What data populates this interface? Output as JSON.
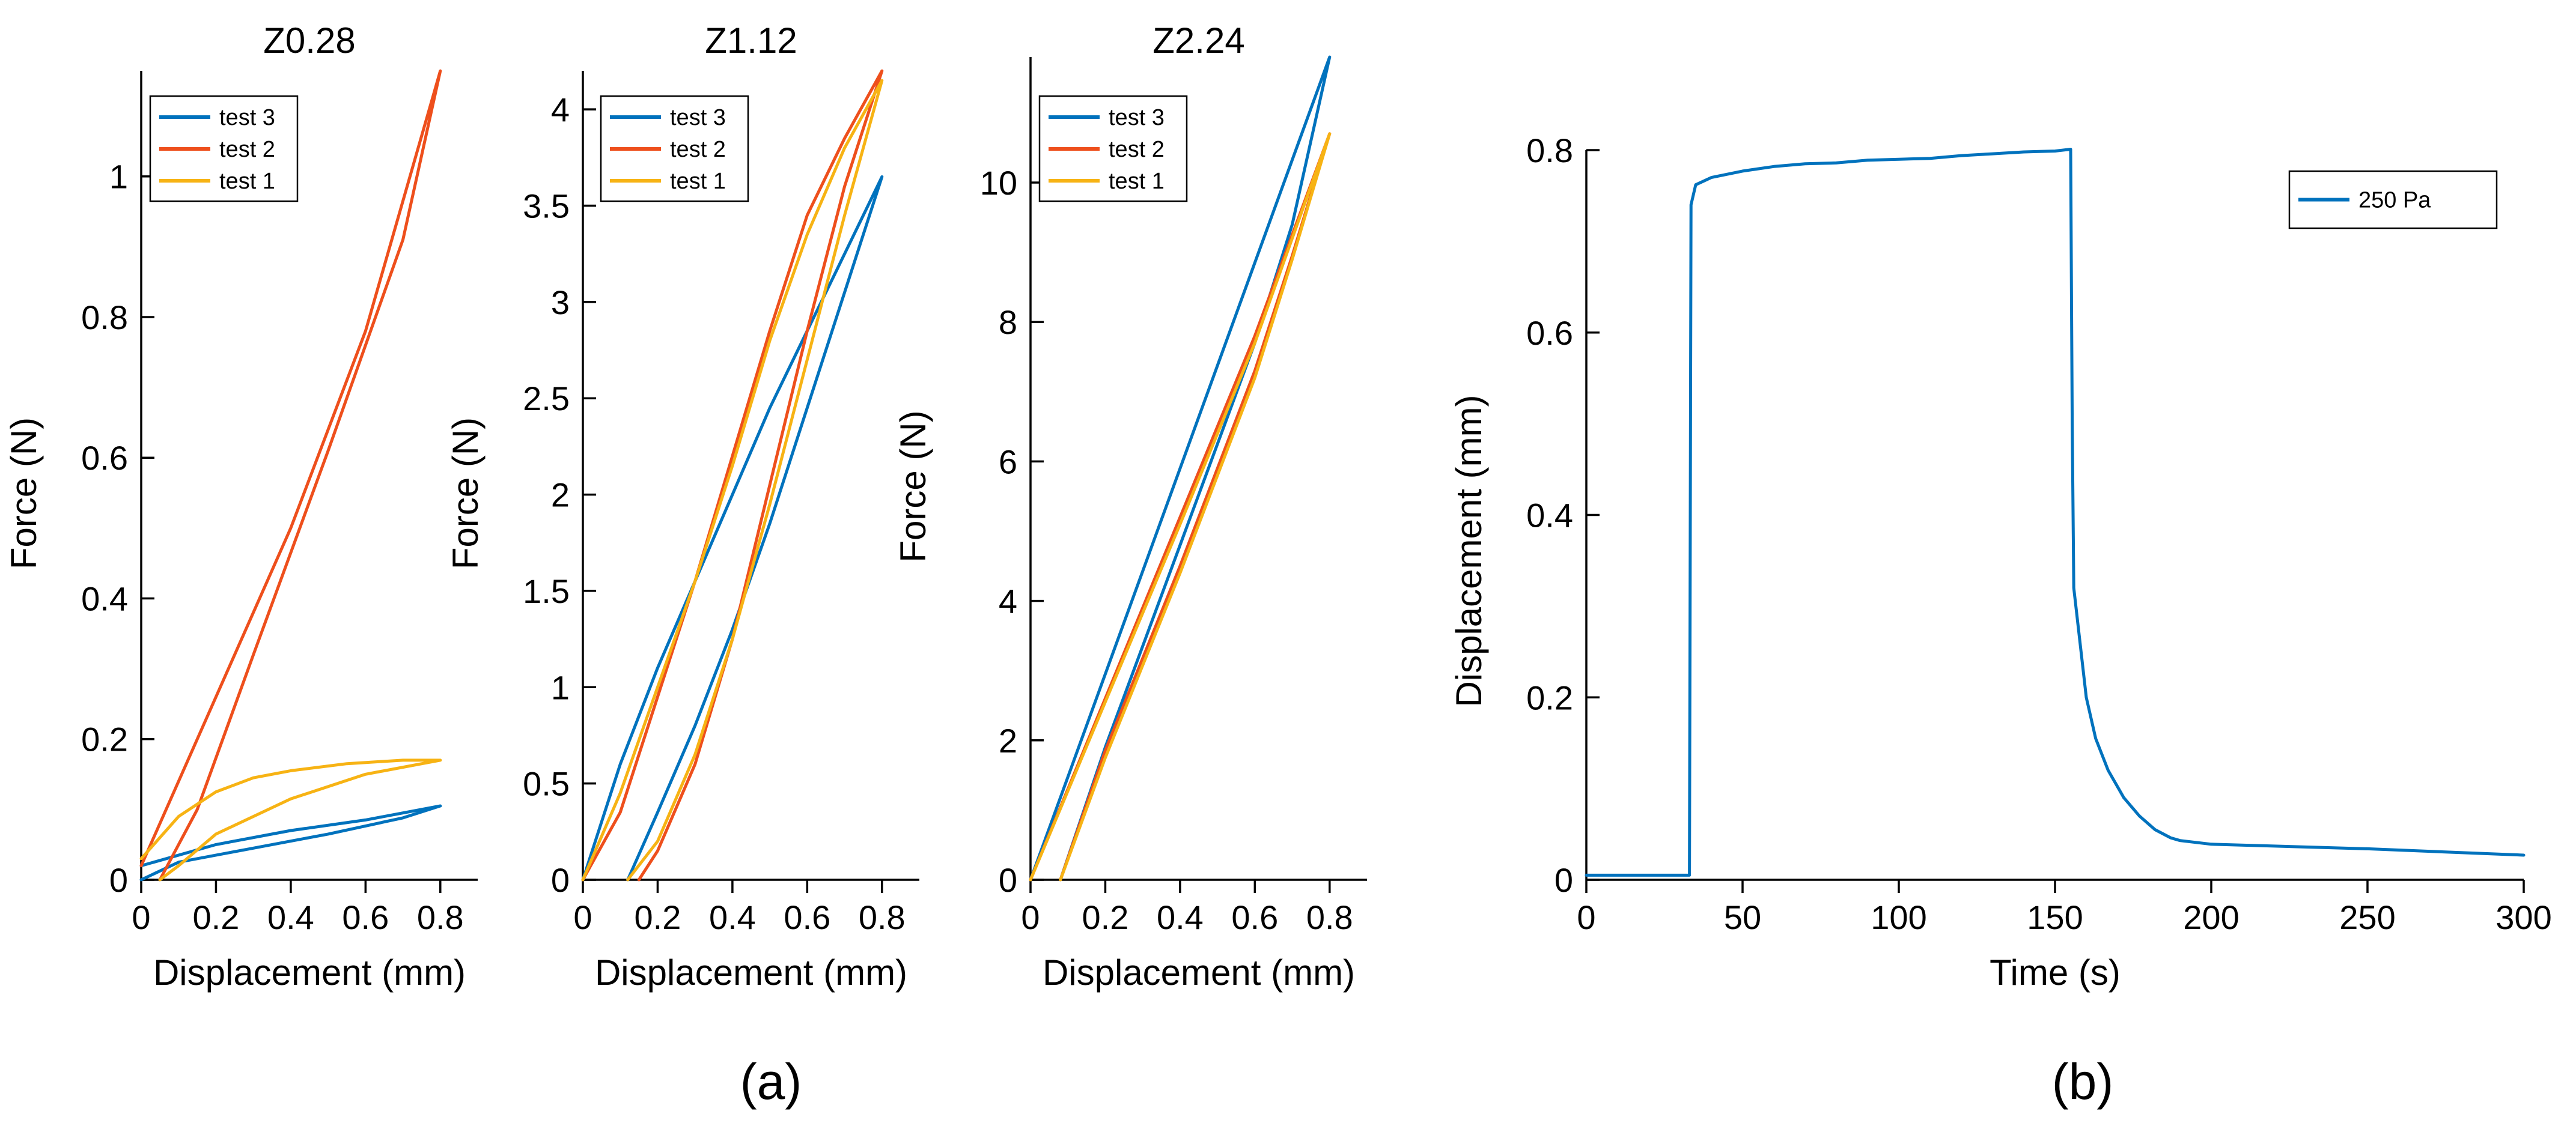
{
  "figure": {
    "captions": {
      "a": "(a)",
      "b": "(b)"
    }
  },
  "chart_data": [
    {
      "id": "z028",
      "type": "line",
      "title": "Z0.28",
      "xlabel": "Displacement (mm)",
      "ylabel": "Force (N)",
      "xlim": [
        0,
        0.9
      ],
      "ylim": [
        0,
        1.15
      ],
      "xticks": [
        0,
        0.2,
        0.4,
        0.6,
        0.8
      ],
      "xtick_labels": [
        "0",
        "0.2",
        "0.4",
        "0.6",
        "0.8"
      ],
      "yticks": [
        0,
        0.2,
        0.4,
        0.6,
        0.8,
        1
      ],
      "ytick_labels": [
        "0",
        "0.2",
        "0.4",
        "0.6",
        "0.8",
        "1"
      ],
      "legend_position": "top-left",
      "series": [
        {
          "name": "test 3",
          "color": "#0072BD",
          "points": [
            [
              0.0,
              0.02
            ],
            [
              0.2,
              0.05
            ],
            [
              0.4,
              0.07
            ],
            [
              0.6,
              0.085
            ],
            [
              0.8,
              0.105
            ],
            [
              0.7,
              0.088
            ],
            [
              0.5,
              0.065
            ],
            [
              0.3,
              0.045
            ],
            [
              0.1,
              0.025
            ],
            [
              0.0,
              0.0
            ]
          ]
        },
        {
          "name": "test 2",
          "color": "#EE4F1C",
          "points": [
            [
              0.0,
              0.02
            ],
            [
              0.2,
              0.26
            ],
            [
              0.4,
              0.5
            ],
            [
              0.6,
              0.78
            ],
            [
              0.8,
              1.15
            ],
            [
              0.7,
              0.91
            ],
            [
              0.5,
              0.61
            ],
            [
              0.3,
              0.32
            ],
            [
              0.15,
              0.1
            ],
            [
              0.05,
              0.0
            ]
          ]
        },
        {
          "name": "test 1",
          "color": "#F7B314",
          "points": [
            [
              0.0,
              0.03
            ],
            [
              0.1,
              0.09
            ],
            [
              0.2,
              0.125
            ],
            [
              0.3,
              0.145
            ],
            [
              0.4,
              0.155
            ],
            [
              0.55,
              0.165
            ],
            [
              0.7,
              0.17
            ],
            [
              0.8,
              0.17
            ],
            [
              0.6,
              0.15
            ],
            [
              0.4,
              0.115
            ],
            [
              0.2,
              0.065
            ],
            [
              0.1,
              0.02
            ],
            [
              0.05,
              0.0
            ]
          ]
        }
      ]
    },
    {
      "id": "z112",
      "type": "line",
      "title": "Z1.12",
      "xlabel": "Displacement (mm)",
      "ylabel": "Force (N)",
      "xlim": [
        0,
        0.9
      ],
      "ylim": [
        0,
        4.2
      ],
      "xticks": [
        0,
        0.2,
        0.4,
        0.6,
        0.8
      ],
      "xtick_labels": [
        "0",
        "0.2",
        "0.4",
        "0.6",
        "0.8"
      ],
      "yticks": [
        0,
        0.5,
        1,
        1.5,
        2,
        2.5,
        3,
        3.5,
        4
      ],
      "ytick_labels": [
        "0",
        "0.5",
        "1",
        "1.5",
        "2",
        "2.5",
        "3",
        "3.5",
        "4"
      ],
      "legend_position": "top-left",
      "series": [
        {
          "name": "test 3",
          "color": "#0072BD",
          "points": [
            [
              0.0,
              0.0
            ],
            [
              0.1,
              0.6
            ],
            [
              0.2,
              1.1
            ],
            [
              0.3,
              1.55
            ],
            [
              0.4,
              2.0
            ],
            [
              0.5,
              2.45
            ],
            [
              0.6,
              2.85
            ],
            [
              0.7,
              3.25
            ],
            [
              0.8,
              3.65
            ],
            [
              0.7,
              3.05
            ],
            [
              0.6,
              2.45
            ],
            [
              0.5,
              1.85
            ],
            [
              0.4,
              1.3
            ],
            [
              0.3,
              0.8
            ],
            [
              0.2,
              0.35
            ],
            [
              0.12,
              0.0
            ]
          ]
        },
        {
          "name": "test 2",
          "color": "#EE4F1C",
          "points": [
            [
              0.0,
              0.0
            ],
            [
              0.1,
              0.35
            ],
            [
              0.2,
              0.95
            ],
            [
              0.3,
              1.55
            ],
            [
              0.4,
              2.2
            ],
            [
              0.5,
              2.85
            ],
            [
              0.6,
              3.45
            ],
            [
              0.7,
              3.85
            ],
            [
              0.8,
              4.2
            ],
            [
              0.7,
              3.6
            ],
            [
              0.6,
              2.85
            ],
            [
              0.5,
              2.05
            ],
            [
              0.4,
              1.25
            ],
            [
              0.3,
              0.6
            ],
            [
              0.2,
              0.15
            ],
            [
              0.15,
              0.0
            ]
          ]
        },
        {
          "name": "test 1",
          "color": "#F7B314",
          "points": [
            [
              0.0,
              0.0
            ],
            [
              0.1,
              0.45
            ],
            [
              0.2,
              1.0
            ],
            [
              0.3,
              1.55
            ],
            [
              0.4,
              2.15
            ],
            [
              0.5,
              2.8
            ],
            [
              0.6,
              3.35
            ],
            [
              0.7,
              3.8
            ],
            [
              0.8,
              4.15
            ],
            [
              0.7,
              3.45
            ],
            [
              0.6,
              2.7
            ],
            [
              0.5,
              1.95
            ],
            [
              0.4,
              1.25
            ],
            [
              0.3,
              0.65
            ],
            [
              0.2,
              0.2
            ],
            [
              0.12,
              0.0
            ]
          ]
        }
      ]
    },
    {
      "id": "z224",
      "type": "line",
      "title": "Z2.24",
      "xlabel": "Displacement (mm)",
      "ylabel": "Force (N)",
      "xlim": [
        0,
        0.9
      ],
      "ylim": [
        0,
        11.8
      ],
      "xticks": [
        0,
        0.2,
        0.4,
        0.6,
        0.8
      ],
      "xtick_labels": [
        "0",
        "0.2",
        "0.4",
        "0.6",
        "0.8"
      ],
      "yticks": [
        0,
        2,
        4,
        6,
        8,
        10
      ],
      "ytick_labels": [
        "0",
        "2",
        "4",
        "6",
        "8",
        "10"
      ],
      "legend_position": "top-left",
      "series": [
        {
          "name": "test 3",
          "color": "#0072BD",
          "points": [
            [
              0.0,
              0.0
            ],
            [
              0.2,
              2.95
            ],
            [
              0.4,
              5.9
            ],
            [
              0.6,
              8.85
            ],
            [
              0.8,
              11.8
            ],
            [
              0.7,
              9.4
            ],
            [
              0.6,
              7.7
            ],
            [
              0.4,
              4.8
            ],
            [
              0.2,
              1.9
            ],
            [
              0.08,
              0.0
            ]
          ]
        },
        {
          "name": "test 2",
          "color": "#EE4F1C",
          "points": [
            [
              0.0,
              0.0
            ],
            [
              0.2,
              2.6
            ],
            [
              0.4,
              5.2
            ],
            [
              0.6,
              7.8
            ],
            [
              0.8,
              10.7
            ],
            [
              0.7,
              8.95
            ],
            [
              0.6,
              7.3
            ],
            [
              0.4,
              4.5
            ],
            [
              0.2,
              1.85
            ],
            [
              0.08,
              0.0
            ]
          ]
        },
        {
          "name": "test 1",
          "color": "#F7B314",
          "points": [
            [
              0.0,
              0.0
            ],
            [
              0.2,
              2.55
            ],
            [
              0.4,
              5.1
            ],
            [
              0.6,
              7.7
            ],
            [
              0.8,
              10.7
            ],
            [
              0.7,
              8.9
            ],
            [
              0.6,
              7.2
            ],
            [
              0.4,
              4.4
            ],
            [
              0.2,
              1.75
            ],
            [
              0.08,
              0.0
            ]
          ]
        }
      ]
    },
    {
      "id": "creep",
      "type": "line",
      "title": "",
      "xlabel": "Time (s)",
      "ylabel": "Displacement (mm)",
      "xlim": [
        0,
        300
      ],
      "ylim": [
        0,
        0.8
      ],
      "xticks": [
        0,
        50,
        100,
        150,
        200,
        250,
        300
      ],
      "xtick_labels": [
        "0",
        "50",
        "100",
        "150",
        "200",
        "250",
        "300"
      ],
      "yticks": [
        0,
        0.2,
        0.4,
        0.6,
        0.8
      ],
      "ytick_labels": [
        "0",
        "0.2",
        "0.4",
        "0.6",
        "0.8"
      ],
      "legend_position": "top-right",
      "series": [
        {
          "name": "250 Pa",
          "color": "#0072BD",
          "points": [
            [
              0,
              0.005
            ],
            [
              33,
              0.005
            ],
            [
              33.5,
              0.74
            ],
            [
              35,
              0.762
            ],
            [
              40,
              0.77
            ],
            [
              50,
              0.777
            ],
            [
              60,
              0.782
            ],
            [
              70,
              0.785
            ],
            [
              80,
              0.786
            ],
            [
              90,
              0.789
            ],
            [
              100,
              0.79
            ],
            [
              110,
              0.791
            ],
            [
              120,
              0.794
            ],
            [
              130,
              0.796
            ],
            [
              140,
              0.798
            ],
            [
              150,
              0.799
            ],
            [
              155,
              0.801
            ],
            [
              155.5,
              0.5
            ],
            [
              156,
              0.32
            ],
            [
              158,
              0.26
            ],
            [
              160,
              0.2
            ],
            [
              163,
              0.155
            ],
            [
              167,
              0.12
            ],
            [
              172,
              0.09
            ],
            [
              177,
              0.07
            ],
            [
              182,
              0.055
            ],
            [
              187,
              0.046
            ],
            [
              190,
              0.043
            ],
            [
              200,
              0.039
            ],
            [
              250,
              0.034
            ],
            [
              300,
              0.027
            ]
          ]
        }
      ]
    }
  ]
}
